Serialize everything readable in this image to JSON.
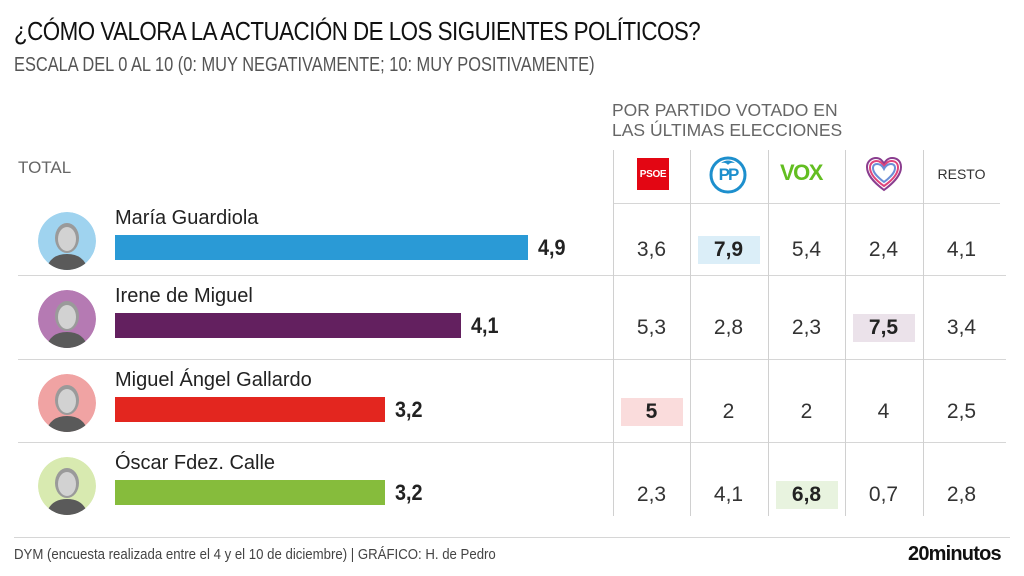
{
  "header": {
    "title": "¿CÓMO VALORA LA ACTUACIÓN DE LOS SIGUIENTES POLÍTICOS?",
    "subtitle": "ESCALA DEL 0 AL 10 (0: MUY NEGATIVAMENTE; 10: MUY POSITIVAMENTE)"
  },
  "party_header": {
    "line1": "POR PARTIDO VOTADO EN",
    "line2": "LAS ÚLTIMAS ELECCIONES"
  },
  "total_label": "TOTAL",
  "parties": [
    {
      "name": "PSOE",
      "icon": "psoe-logo-icon",
      "logo_text": "PSOE",
      "color": "#e30613"
    },
    {
      "name": "PP",
      "icon": "pp-logo-icon",
      "logo_text": "PP",
      "color": "#1d8fcd"
    },
    {
      "name": "VOX",
      "icon": "vox-logo-icon",
      "logo_text": "VOX",
      "color": "#63be21"
    },
    {
      "name": "Unidas Podemos",
      "icon": "heart-logo-icon",
      "color": "#8a3d8f"
    },
    {
      "name": "RESTO",
      "label": "RESTO"
    }
  ],
  "chart_data": {
    "type": "bar",
    "orientation": "horizontal",
    "title": "¿CÓMO VALORA LA ACTUACIÓN DE LOS SIGUIENTES POLÍTICOS?",
    "subtitle": "ESCALA DEL 0 AL 10 (0: MUY NEGATIVAMENTE; 10: MUY POSITIVAMENTE)",
    "xlim": [
      0,
      10
    ],
    "categories": [
      "María Guardiola",
      "Irene de Miguel",
      "Miguel Ángel Gallardo",
      "Óscar Fdez. Calle"
    ],
    "values": [
      4.9,
      4.1,
      3.2,
      3.2
    ],
    "value_labels": [
      "4,9",
      "4,1",
      "3,2",
      "3,2"
    ],
    "bar_colors": [
      "#2a9ad6",
      "#63205f",
      "#e3261f",
      "#86bc3c"
    ],
    "table": {
      "columns": [
        "PSOE",
        "PP",
        "VOX",
        "Unidas Podemos",
        "RESTO"
      ],
      "rows": [
        {
          "politician": "María Guardiola",
          "values": [
            "3,6",
            "7,9",
            "5,4",
            "2,4",
            "4,1"
          ],
          "highlight": 1,
          "highlight_color": "#dbeef8"
        },
        {
          "politician": "Irene de Miguel",
          "values": [
            "5,3",
            "2,8",
            "2,3",
            "7,5",
            "3,4"
          ],
          "highlight": 3,
          "highlight_color": "#ebe2ea"
        },
        {
          "politician": "Miguel Ángel Gallardo",
          "values": [
            "5",
            "2",
            "2",
            "4",
            "2,5"
          ],
          "highlight": 0,
          "highlight_color": "#fadcdc"
        },
        {
          "politician": "Óscar Fdez. Calle",
          "values": [
            "2,3",
            "4,1",
            "6,8",
            "0,7",
            "2,8"
          ],
          "highlight": 2,
          "highlight_color": "#e8f3df"
        }
      ]
    }
  },
  "avatars": [
    {
      "ring_color": "#9fd3ef"
    },
    {
      "ring_color": "#b57ab3"
    },
    {
      "ring_color": "#f0a3a3"
    },
    {
      "ring_color": "#d8eab0"
    }
  ],
  "footer": {
    "source": "DYM (encuesta realizada entre el 4 y el 10 de diciembre)  |  GRÁFICO: H. de Pedro",
    "brand": "20minutos"
  }
}
